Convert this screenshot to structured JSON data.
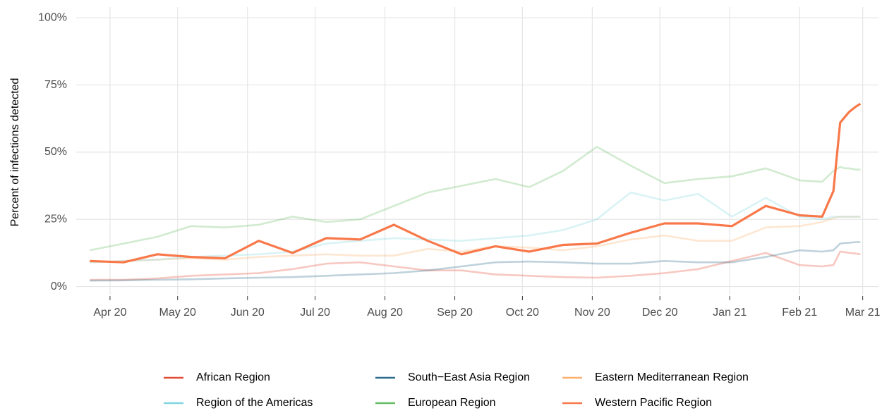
{
  "chart_data": {
    "type": "line",
    "y_label": "Percent of infections detected",
    "x": [
      -9,
      6,
      21,
      36,
      51,
      66,
      81,
      96,
      111,
      126,
      141,
      156,
      171,
      186,
      201,
      216,
      231,
      246,
      261,
      276,
      291,
      306,
      316,
      321,
      324,
      326,
      328,
      331,
      333
    ],
    "xlim": [
      -15,
      341
    ],
    "xticks": [
      {
        "value": 0,
        "label": "Apr 20"
      },
      {
        "value": 30,
        "label": "May 20"
      },
      {
        "value": 61,
        "label": "Jun 20"
      },
      {
        "value": 91,
        "label": "Jul 20"
      },
      {
        "value": 122,
        "label": "Aug 20"
      },
      {
        "value": 153,
        "label": "Sep 20"
      },
      {
        "value": 183,
        "label": "Oct 20"
      },
      {
        "value": 214,
        "label": "Nov 20"
      },
      {
        "value": 244,
        "label": "Dec 20"
      },
      {
        "value": 275,
        "label": "Jan 21"
      },
      {
        "value": 306,
        "label": "Feb 21"
      },
      {
        "value": 334,
        "label": "Mar 21"
      }
    ],
    "ylim": [
      -3,
      104
    ],
    "yticks": [
      {
        "value": 0,
        "label": "0%"
      },
      {
        "value": 25,
        "label": "25%"
      },
      {
        "value": 50,
        "label": "50%"
      },
      {
        "value": 75,
        "label": "75%"
      },
      {
        "value": 100,
        "label": "100%"
      }
    ],
    "grid": true,
    "legend": "bottom",
    "series": [
      {
        "name": "African Region",
        "color": "#e34a33",
        "opacity": 0.3,
        "values": [
          2.5,
          2.5,
          3,
          4,
          4.5,
          5,
          6.5,
          8.5,
          9,
          7.5,
          6,
          6,
          4.5,
          4,
          3.5,
          3.3,
          4,
          5,
          6.5,
          9.5,
          12.5,
          8,
          7.5,
          8,
          13,
          12.8,
          12.5,
          12.3,
          12
        ]
      },
      {
        "name": "South−East Asia Region",
        "color": "#2b6b8c",
        "opacity": 0.3,
        "values": [
          2.2,
          2.3,
          2.5,
          2.7,
          3,
          3.3,
          3.5,
          4,
          4.5,
          5,
          6,
          7.5,
          9,
          9.3,
          9,
          8.5,
          8.5,
          9.5,
          9,
          9,
          11,
          13.5,
          13,
          13.5,
          16,
          16.2,
          16.3,
          16.5,
          16.5
        ]
      },
      {
        "name": "Eastern Mediterranean Region",
        "color": "#fdae6b",
        "opacity": 0.3,
        "values": [
          9,
          9.5,
          10,
          10.5,
          10,
          11,
          11.5,
          12,
          11.5,
          11.5,
          14,
          13,
          15,
          14.5,
          13.5,
          15,
          17.5,
          19,
          17,
          17,
          22,
          22.5,
          24,
          25.5,
          26,
          26,
          26,
          26,
          26
        ]
      },
      {
        "name": "Region of the Americas",
        "color": "#80d6df",
        "opacity": 0.3,
        "values": [
          9,
          9.5,
          10,
          11,
          11.5,
          12,
          13,
          16,
          17,
          18,
          17.5,
          17,
          18,
          19,
          21,
          25,
          35,
          32,
          34.5,
          26,
          33,
          26,
          25,
          26,
          26,
          26,
          26,
          26,
          26
        ]
      },
      {
        "name": "European Region",
        "color": "#66bd63",
        "opacity": 0.3,
        "values": [
          13.5,
          16,
          18.5,
          22.5,
          22,
          23,
          26,
          24,
          25,
          30,
          35,
          37.5,
          40,
          37,
          43,
          52,
          45,
          38.5,
          40,
          41,
          44,
          39.5,
          39,
          43,
          44.5,
          44,
          44,
          43.5,
          43.5
        ]
      },
      {
        "name": "Western Pacific Region",
        "color": "#f9784a",
        "opacity": 1,
        "values": [
          9.5,
          9,
          12,
          11,
          10.5,
          17,
          12.5,
          18,
          17.5,
          23,
          17,
          12,
          15,
          13,
          15.5,
          16,
          20,
          23.5,
          23.5,
          22.5,
          30,
          26.5,
          26,
          35.5,
          61,
          63,
          65,
          67,
          68
        ]
      }
    ]
  }
}
